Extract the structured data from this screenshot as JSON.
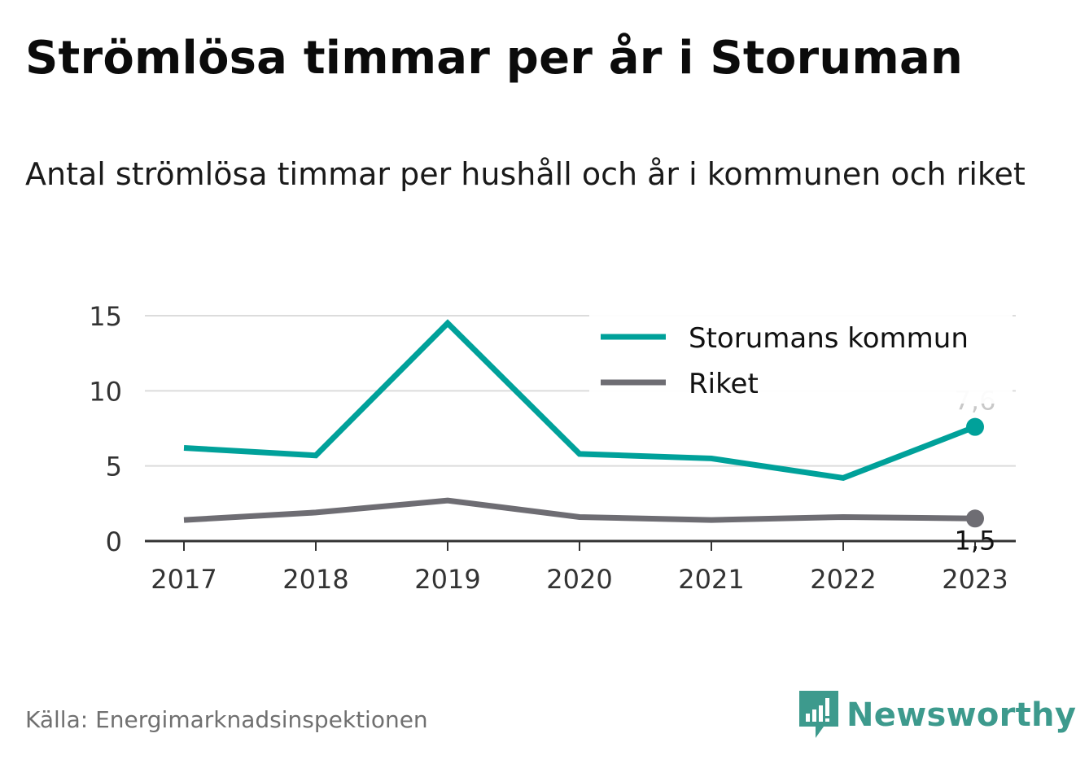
{
  "header": {
    "title": "Strömlösa timmar per år i Storuman",
    "subtitle": "Antal strömlösa timmar per hushåll och år i kommunen och riket"
  },
  "chart_data": {
    "type": "line",
    "title": "Strömlösa timmar per år i Storuman",
    "subtitle": "Antal strömlösa timmar per hushåll och år i kommunen och riket",
    "xlabel": "",
    "ylabel": "",
    "categories": [
      "2017",
      "2018",
      "2019",
      "2020",
      "2021",
      "2022",
      "2023"
    ],
    "yticks": [
      "0",
      "5",
      "10",
      "15"
    ],
    "ylim": [
      0,
      15
    ],
    "grid": true,
    "legend_position": "top-right",
    "series": [
      {
        "name": "Storumans kommun",
        "color": "#00a19a",
        "values": [
          6.2,
          5.7,
          14.5,
          5.8,
          5.5,
          4.2,
          7.6
        ],
        "end_label": "7,6",
        "end_label_color": "#c8c8c8"
      },
      {
        "name": "Riket",
        "color": "#6e6d73",
        "values": [
          1.4,
          1.9,
          2.7,
          1.6,
          1.4,
          1.6,
          1.5
        ],
        "end_label": "1,5",
        "end_label_color": "#111111"
      }
    ]
  },
  "footer": {
    "source": "Källa: Energimarknadsinspektionen",
    "brand": "Newsworthy",
    "brand_color": "#3d9a8d"
  }
}
